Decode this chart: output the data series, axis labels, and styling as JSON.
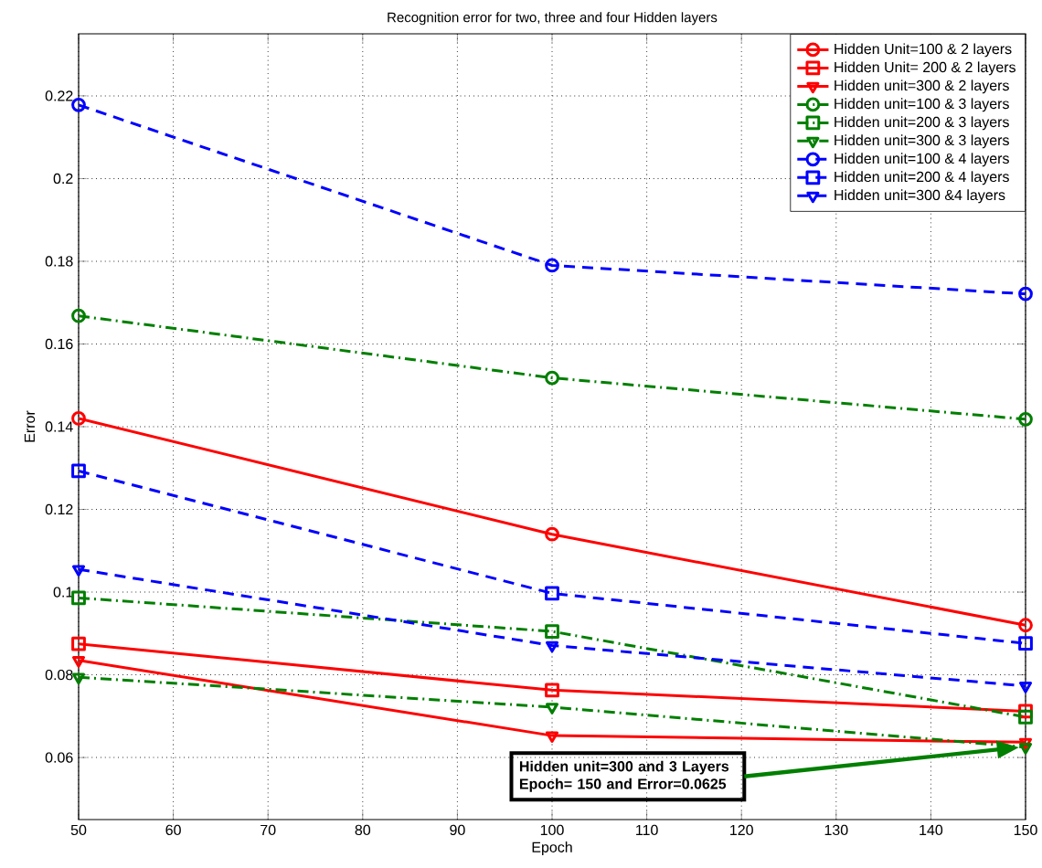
{
  "chart_data": {
    "type": "line",
    "title": "Recognition error for two, three and four  Hidden layers",
    "xlabel": "Epoch",
    "ylabel": "Error",
    "x": [
      50,
      100,
      150
    ],
    "series": [
      {
        "name": "Hidden Unit=100 & 2 layers",
        "color": "#ff0000",
        "marker": "circle",
        "line_style": "solid",
        "values": [
          0.142,
          0.114,
          0.092
        ]
      },
      {
        "name": "Hidden Unit= 200 & 2 layers",
        "color": "#ff0000",
        "marker": "square",
        "line_style": "solid",
        "values": [
          0.0875,
          0.0763,
          0.0712
        ]
      },
      {
        "name": "Hidden unit=300 & 2 layers",
        "color": "#ff0000",
        "marker": "triangle",
        "line_style": "solid",
        "values": [
          0.0835,
          0.0653,
          0.0637
        ]
      },
      {
        "name": "Hidden  unit=100 & 3 layers",
        "color": "#007f00",
        "marker": "circle",
        "line_style": "dashdot",
        "values": [
          0.1668,
          0.1518,
          0.1418
        ]
      },
      {
        "name": "Hidden unit=200 & 3 layers",
        "color": "#007f00",
        "marker": "square",
        "line_style": "dashdot",
        "values": [
          0.0986,
          0.0905,
          0.0698
        ]
      },
      {
        "name": "Hidden unit=300 & 3 layers",
        "color": "#007f00",
        "marker": "triangle",
        "line_style": "dashdot",
        "values": [
          0.0794,
          0.0722,
          0.0625
        ]
      },
      {
        "name": "Hidden unit=100 & 4 layers",
        "color": "#0000ff",
        "marker": "circle",
        "line_style": "dashed",
        "values": [
          0.2178,
          0.179,
          0.1721
        ]
      },
      {
        "name": "Hidden unit=200 & 4 layers",
        "color": "#0000ff",
        "marker": "square",
        "line_style": "dashed",
        "values": [
          0.1293,
          0.0997,
          0.0876
        ]
      },
      {
        "name": "Hidden unit=300 &4 layers",
        "color": "#0000ff",
        "marker": "triangle",
        "line_style": "dashed",
        "values": [
          0.1055,
          0.0871,
          0.0773
        ]
      }
    ],
    "xlim": [
      50,
      150
    ],
    "ylim": [
      0.045,
      0.235
    ],
    "xticks": [
      50,
      60,
      70,
      80,
      90,
      100,
      110,
      120,
      130,
      140,
      150
    ],
    "yticks": [
      0.06,
      0.08,
      0.1,
      0.12,
      0.14,
      0.16,
      0.18,
      0.2,
      0.22
    ],
    "grid": true,
    "legend": "top right",
    "annotations": [
      "Hidden unit=300 and 3 Layers Epoch= 150 and Error=0.0625"
    ]
  }
}
